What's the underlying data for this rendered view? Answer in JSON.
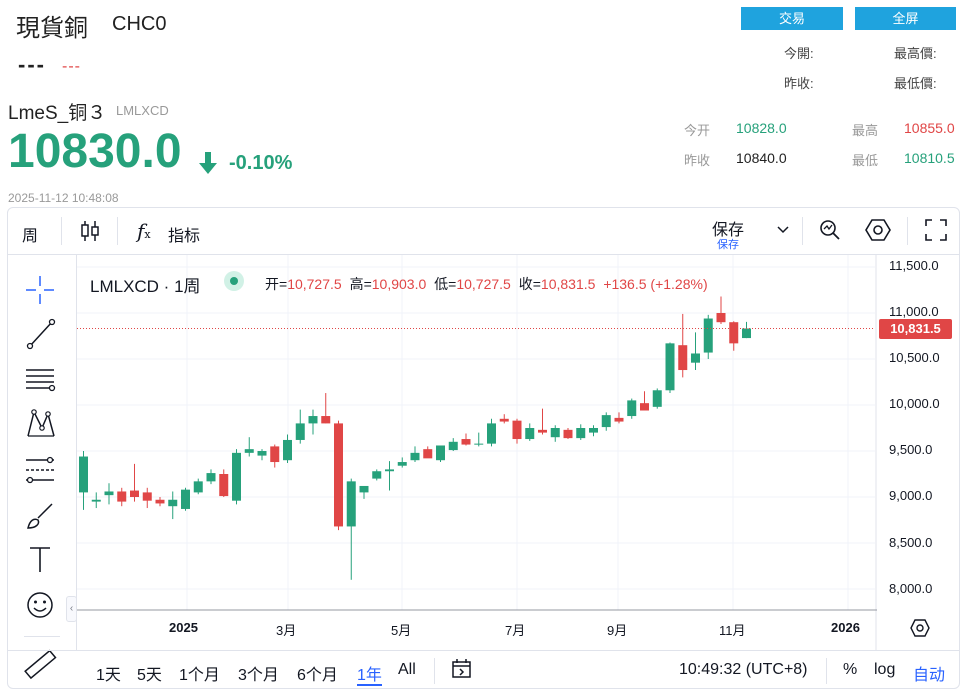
{
  "top": {
    "title": "現貨銅",
    "code": "CHC0",
    "price_placeholder": "---",
    "change_placeholder": "---",
    "trade_button": "交易",
    "fullscreen_button": "全屏",
    "labels": {
      "open": "今開:",
      "high": "最高價:",
      "prev_close": "昨收:",
      "low": "最低價:"
    }
  },
  "lme": {
    "name": "LmeS_铜３",
    "code": "LMLXCD",
    "price": "10830.0",
    "change": "-0.10%",
    "timestamp": "2025-11-12 10:48:08",
    "quote": {
      "open_label": "今开",
      "open_value": "10828.0",
      "high_label": "最高",
      "high_value": "10855.0",
      "prev_label": "昨收",
      "prev_value": "10840.0",
      "low_label": "最低",
      "low_value": "10810.5"
    },
    "colors": {
      "up": "#26a17b",
      "down": "#e04646",
      "accent": "#1fa3de"
    }
  },
  "toolbar": {
    "interval": "周",
    "indicators": "指标",
    "save": "保存",
    "save_sub": "保存",
    "icons": [
      "candles-icon",
      "fx-icon",
      "chevron-down-icon",
      "search-icon",
      "settings-icon",
      "fullscreen-icon"
    ]
  },
  "legend": {
    "symbol": "LMLXCD · 1周",
    "open_label": "开=",
    "open": "10,727.5",
    "high_label": "高=",
    "high": "10,903.0",
    "low_label": "低=",
    "low": "10,727.5",
    "close_label": "收=",
    "close": "10,831.5",
    "change": "+136.5 (+1.28%)"
  },
  "price_tag": "10,831.5",
  "bottom": {
    "ranges": [
      "1天",
      "5天",
      "1个月",
      "3个月",
      "6个月",
      "1年",
      "All"
    ],
    "active_range": "1年",
    "time": "10:49:32 (UTC+8)",
    "percent": "%",
    "log": "log",
    "auto": "自动"
  },
  "chart_data": {
    "type": "candlestick",
    "interval": "weekly",
    "y_ticks": [
      "11,500.0",
      "11,000.0",
      "10,500.0",
      "10,000.0",
      "9,500.0",
      "9,000.0",
      "8,500.0",
      "8,000.0"
    ],
    "x_ticks": [
      "2025",
      "3月",
      "5月",
      "7月",
      "9月",
      "11月",
      "2026"
    ],
    "ylim": [
      7850,
      11600
    ],
    "last_price_line": 10831.5,
    "candles": [
      {
        "o": 9050,
        "h": 9500,
        "l": 8860,
        "c": 9440
      },
      {
        "o": 8950,
        "h": 9050,
        "l": 8880,
        "c": 8970
      },
      {
        "o": 9020,
        "h": 9150,
        "l": 8920,
        "c": 9060
      },
      {
        "o": 9060,
        "h": 9100,
        "l": 8900,
        "c": 8950
      },
      {
        "o": 9070,
        "h": 9360,
        "l": 8950,
        "c": 9000
      },
      {
        "o": 9050,
        "h": 9100,
        "l": 8880,
        "c": 8960
      },
      {
        "o": 8970,
        "h": 9000,
        "l": 8900,
        "c": 8930
      },
      {
        "o": 8900,
        "h": 9060,
        "l": 8760,
        "c": 8970
      },
      {
        "o": 8870,
        "h": 9100,
        "l": 8850,
        "c": 9080
      },
      {
        "o": 9050,
        "h": 9200,
        "l": 9030,
        "c": 9170
      },
      {
        "o": 9170,
        "h": 9300,
        "l": 9140,
        "c": 9260
      },
      {
        "o": 9250,
        "h": 9300,
        "l": 9000,
        "c": 9010
      },
      {
        "o": 8960,
        "h": 9520,
        "l": 8920,
        "c": 9480
      },
      {
        "o": 9480,
        "h": 9650,
        "l": 9440,
        "c": 9520
      },
      {
        "o": 9450,
        "h": 9520,
        "l": 9400,
        "c": 9500
      },
      {
        "o": 9550,
        "h": 9570,
        "l": 9320,
        "c": 9380
      },
      {
        "o": 9400,
        "h": 9680,
        "l": 9370,
        "c": 9620
      },
      {
        "o": 9620,
        "h": 9950,
        "l": 9580,
        "c": 9800
      },
      {
        "o": 9800,
        "h": 9950,
        "l": 9680,
        "c": 9880
      },
      {
        "o": 9880,
        "h": 10130,
        "l": 9800,
        "c": 9800
      },
      {
        "o": 9800,
        "h": 9830,
        "l": 8640,
        "c": 8680
      },
      {
        "o": 8680,
        "h": 9200,
        "l": 8100,
        "c": 9170
      },
      {
        "o": 9050,
        "h": 9100,
        "l": 8980,
        "c": 9120
      },
      {
        "o": 9200,
        "h": 9300,
        "l": 9180,
        "c": 9280
      },
      {
        "o": 9280,
        "h": 9390,
        "l": 9070,
        "c": 9300
      },
      {
        "o": 9340,
        "h": 9430,
        "l": 9320,
        "c": 9380
      },
      {
        "o": 9400,
        "h": 9550,
        "l": 9380,
        "c": 9480
      },
      {
        "o": 9520,
        "h": 9550,
        "l": 9440,
        "c": 9420
      },
      {
        "o": 9400,
        "h": 9560,
        "l": 9380,
        "c": 9560
      },
      {
        "o": 9510,
        "h": 9640,
        "l": 9500,
        "c": 9600
      },
      {
        "o": 9630,
        "h": 9690,
        "l": 9560,
        "c": 9570
      },
      {
        "o": 9580,
        "h": 9700,
        "l": 9550,
        "c": 9580
      },
      {
        "o": 9580,
        "h": 9850,
        "l": 9550,
        "c": 9800
      },
      {
        "o": 9850,
        "h": 9900,
        "l": 9800,
        "c": 9820
      },
      {
        "o": 9830,
        "h": 9850,
        "l": 9580,
        "c": 9630
      },
      {
        "o": 9630,
        "h": 9800,
        "l": 9610,
        "c": 9750
      },
      {
        "o": 9730,
        "h": 9960,
        "l": 9680,
        "c": 9700
      },
      {
        "o": 9650,
        "h": 9780,
        "l": 9600,
        "c": 9750
      },
      {
        "o": 9730,
        "h": 9750,
        "l": 9630,
        "c": 9640
      },
      {
        "o": 9640,
        "h": 9790,
        "l": 9620,
        "c": 9750
      },
      {
        "o": 9700,
        "h": 9780,
        "l": 9660,
        "c": 9750
      },
      {
        "o": 9760,
        "h": 9920,
        "l": 9720,
        "c": 9890
      },
      {
        "o": 9860,
        "h": 9920,
        "l": 9800,
        "c": 9820
      },
      {
        "o": 9880,
        "h": 10070,
        "l": 9850,
        "c": 10050
      },
      {
        "o": 10020,
        "h": 10150,
        "l": 9960,
        "c": 9940
      },
      {
        "o": 9980,
        "h": 10180,
        "l": 9960,
        "c": 10160
      },
      {
        "o": 10160,
        "h": 10680,
        "l": 10130,
        "c": 10670
      },
      {
        "o": 10650,
        "h": 10990,
        "l": 10300,
        "c": 10380
      },
      {
        "o": 10460,
        "h": 10790,
        "l": 10380,
        "c": 10560
      },
      {
        "o": 10570,
        "h": 10980,
        "l": 10500,
        "c": 10940
      },
      {
        "o": 11000,
        "h": 11180,
        "l": 10880,
        "c": 10900
      },
      {
        "o": 10900,
        "h": 10910,
        "l": 10590,
        "c": 10670
      },
      {
        "o": 10727.5,
        "h": 10903,
        "l": 10727.5,
        "c": 10831.5
      }
    ]
  }
}
